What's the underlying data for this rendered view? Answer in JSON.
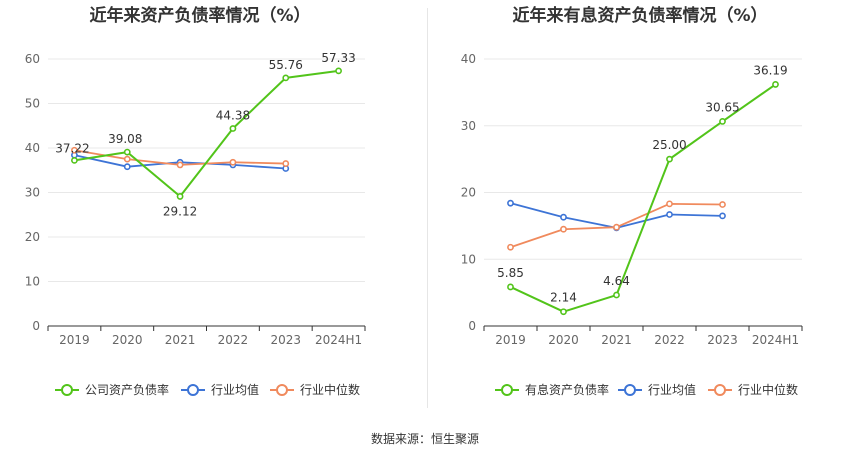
{
  "source": "数据来源：恒生聚源",
  "chart_data": [
    {
      "type": "line",
      "title": "近年来资产负债率情况（%）",
      "categories": [
        "2019",
        "2020",
        "2021",
        "2022",
        "2023",
        "2024H1"
      ],
      "ylim": [
        0,
        60
      ],
      "yticks": [
        0,
        10,
        20,
        30,
        40,
        50,
        60
      ],
      "grid": true,
      "legend_position": "bottom",
      "series": [
        {
          "name": "公司资产负债率",
          "color": "#52c41a",
          "values": [
            37.22,
            39.08,
            29.12,
            44.38,
            55.76,
            57.33
          ],
          "labels": [
            "37.22",
            "39.08",
            "29.12",
            "44.38",
            "55.76",
            "57.33"
          ]
        },
        {
          "name": "行业均值",
          "color": "#3d74d6",
          "values": [
            38.4,
            35.8,
            36.8,
            36.2,
            35.4,
            null
          ]
        },
        {
          "name": "行业中位数",
          "color": "#f08a5d",
          "values": [
            39.5,
            37.5,
            36.2,
            36.8,
            36.5,
            null
          ]
        }
      ]
    },
    {
      "type": "line",
      "title": "近年来有息资产负债率情况（%）",
      "categories": [
        "2019",
        "2020",
        "2021",
        "2022",
        "2023",
        "2024H1"
      ],
      "ylim": [
        0,
        40
      ],
      "yticks": [
        0,
        10,
        20,
        30,
        40
      ],
      "grid": true,
      "legend_position": "bottom",
      "series": [
        {
          "name": "有息资产负债率",
          "color": "#52c41a",
          "values": [
            5.85,
            2.14,
            4.64,
            25.0,
            30.65,
            36.19
          ],
          "labels": [
            "5.85",
            "2.14",
            "4.64",
            "25.00",
            "30.65",
            "36.19"
          ]
        },
        {
          "name": "行业均值",
          "color": "#3d74d6",
          "values": [
            18.4,
            16.3,
            14.7,
            16.7,
            16.5,
            null
          ]
        },
        {
          "name": "行业中位数",
          "color": "#f08a5d",
          "values": [
            11.8,
            14.5,
            14.8,
            18.3,
            18.2,
            null
          ]
        }
      ]
    }
  ]
}
